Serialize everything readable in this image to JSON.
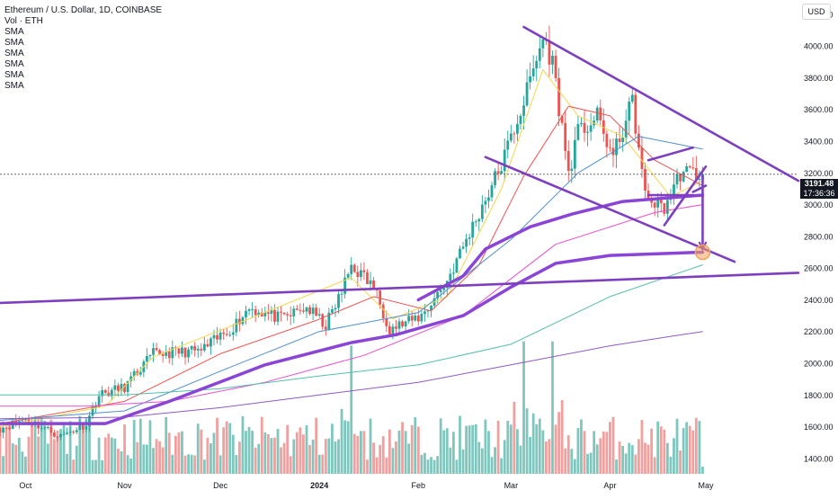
{
  "legend": {
    "title": "Ethereum / U.S. Dollar, 1D, COINBASE",
    "volume": "Vol · ETH",
    "indicators": [
      "SMA",
      "SMA",
      "SMA",
      "SMA",
      "SMA",
      "SMA"
    ]
  },
  "currency": "USD",
  "price_badge": {
    "price": "3191.48",
    "countdown": "17:36:36"
  },
  "colors": {
    "up": "#26a69a",
    "down": "#ef5350",
    "vol_up": "#7fc7be",
    "vol_down": "#f0a09e",
    "trendline": "#7e3fbf",
    "sma_yellow": "#f2d64b",
    "sma_red": "#ef5350",
    "sma_blue": "#4e8fcf",
    "sma_pink": "#e94fd0",
    "sma_teal": "#52bfa8",
    "sma_purple_thick": "#8a45d6",
    "sma_purple": "#8f58c8",
    "marker": "#f5a25d"
  },
  "chart_data": {
    "type": "candlestick",
    "title": "Ethereum / U.S. Dollar, 1D, COINBASE",
    "y_ticks": [
      1400,
      1600,
      1800,
      2000,
      2200,
      2400,
      2600,
      2800,
      3000,
      3200,
      3400,
      3600,
      3800,
      4000,
      4200
    ],
    "y_tick_labels": [
      "1400.00",
      "1600.00",
      "1800.00",
      "2000.00",
      "2200.00",
      "2400.00",
      "2600.00",
      "2800.00",
      "3000.00",
      "3200.00",
      "3400.00",
      "3600.00",
      "3800.00",
      "4000.00",
      "4200.00"
    ],
    "ylim": [
      1320,
      4290
    ],
    "x_tick_labels": [
      "Oct",
      "Nov",
      "Dec",
      "2024",
      "Feb",
      "Mar",
      "Apr",
      "May"
    ],
    "x_tick_dates": [
      "2023-10-01",
      "2023-11-01",
      "2023-12-01",
      "2024-01-01",
      "2024-02-01",
      "2024-03-01",
      "2024-04-01",
      "2024-05-01"
    ],
    "x_range": [
      "2023-09-23",
      "2024-05-30"
    ],
    "last_price": 3191.48,
    "price_path": [
      [
        "2023-09-23",
        1590
      ],
      [
        "2023-10-01",
        1650
      ],
      [
        "2023-10-12",
        1540
      ],
      [
        "2023-10-20",
        1620
      ],
      [
        "2023-10-24",
        1800
      ],
      [
        "2023-11-01",
        1850
      ],
      [
        "2023-11-10",
        2060
      ],
      [
        "2023-11-25",
        2080
      ],
      [
        "2023-12-05",
        2230
      ],
      [
        "2023-12-10",
        2350
      ],
      [
        "2023-12-20",
        2280
      ],
      [
        "2023-12-28",
        2350
      ],
      [
        "2024-01-03",
        2240
      ],
      [
        "2024-01-08",
        2450
      ],
      [
        "2024-01-11",
        2620
      ],
      [
        "2024-01-18",
        2480
      ],
      [
        "2024-01-23",
        2220
      ],
      [
        "2024-01-29",
        2260
      ],
      [
        "2024-02-02",
        2300
      ],
      [
        "2024-02-10",
        2520
      ],
      [
        "2024-02-20",
        2950
      ],
      [
        "2024-02-27",
        3250
      ],
      [
        "2024-03-05",
        3650
      ],
      [
        "2024-03-11",
        4050
      ],
      [
        "2024-03-14",
        3900
      ],
      [
        "2024-03-19",
        3200
      ],
      [
        "2024-03-22",
        3450
      ],
      [
        "2024-03-28",
        3550
      ],
      [
        "2024-04-02",
        3300
      ],
      [
        "2024-04-08",
        3650
      ],
      [
        "2024-04-12",
        3050
      ],
      [
        "2024-04-18",
        2980
      ],
      [
        "2024-04-23",
        3200
      ],
      [
        "2024-04-27",
        3200
      ],
      [
        "2024-04-30",
        3191.48
      ]
    ],
    "moving_averages": [
      {
        "label": "SMA",
        "color_key": "sma_yellow",
        "width": 1,
        "points": [
          [
            "2023-09-23",
            1600
          ],
          [
            "2023-10-26",
            1730
          ],
          [
            "2023-11-10",
            2040
          ],
          [
            "2023-12-10",
            2280
          ],
          [
            "2024-01-11",
            2540
          ],
          [
            "2024-01-24",
            2280
          ],
          [
            "2024-02-10",
            2420
          ],
          [
            "2024-02-27",
            3100
          ],
          [
            "2024-03-11",
            3850
          ],
          [
            "2024-03-22",
            3560
          ],
          [
            "2024-04-05",
            3430
          ],
          [
            "2024-04-20",
            3050
          ],
          [
            "2024-04-30",
            3150
          ]
        ]
      },
      {
        "label": "SMA",
        "color_key": "sma_red",
        "width": 1,
        "points": [
          [
            "2023-09-23",
            1620
          ],
          [
            "2023-11-01",
            1760
          ],
          [
            "2023-12-01",
            2060
          ],
          [
            "2023-12-31",
            2270
          ],
          [
            "2024-01-18",
            2420
          ],
          [
            "2024-02-05",
            2330
          ],
          [
            "2024-02-20",
            2620
          ],
          [
            "2024-03-05",
            3180
          ],
          [
            "2024-03-19",
            3620
          ],
          [
            "2024-04-01",
            3560
          ],
          [
            "2024-04-15",
            3280
          ],
          [
            "2024-04-30",
            3120
          ]
        ]
      },
      {
        "label": "SMA",
        "color_key": "sma_blue",
        "width": 1,
        "points": [
          [
            "2023-09-23",
            1640
          ],
          [
            "2023-11-01",
            1700
          ],
          [
            "2023-12-01",
            1950
          ],
          [
            "2024-01-01",
            2200
          ],
          [
            "2024-02-01",
            2320
          ],
          [
            "2024-03-01",
            2780
          ],
          [
            "2024-03-22",
            3200
          ],
          [
            "2024-04-10",
            3430
          ],
          [
            "2024-04-30",
            3350
          ]
        ]
      },
      {
        "label": "SMA",
        "color_key": "sma_pink",
        "width": 1,
        "points": [
          [
            "2023-09-23",
            1730
          ],
          [
            "2023-10-20",
            1730
          ],
          [
            "2023-11-15",
            1760
          ],
          [
            "2023-12-15",
            1880
          ],
          [
            "2024-01-15",
            2050
          ],
          [
            "2024-02-15",
            2300
          ],
          [
            "2024-03-15",
            2750
          ],
          [
            "2024-04-15",
            2950
          ],
          [
            "2024-04-30",
            3000
          ]
        ]
      },
      {
        "label": "SMA",
        "color_key": "sma_teal",
        "width": 1,
        "points": [
          [
            "2023-09-23",
            1800
          ],
          [
            "2023-11-01",
            1800
          ],
          [
            "2023-12-01",
            1840
          ],
          [
            "2024-01-01",
            1920
          ],
          [
            "2024-02-01",
            1990
          ],
          [
            "2024-03-01",
            2120
          ],
          [
            "2024-04-01",
            2420
          ],
          [
            "2024-04-30",
            2620
          ]
        ]
      },
      {
        "label": "SMA",
        "color_key": "sma_purple_thick",
        "width": 3.5,
        "points": [
          [
            "2023-09-23",
            1620
          ],
          [
            "2023-10-26",
            1620
          ],
          [
            "2023-11-15",
            1760
          ],
          [
            "2023-12-15",
            1990
          ],
          [
            "2024-01-11",
            2130
          ],
          [
            "2024-01-25",
            2180
          ],
          [
            "2024-02-15",
            2300
          ],
          [
            "2024-03-01",
            2480
          ],
          [
            "2024-03-15",
            2630
          ],
          [
            "2024-04-01",
            2680
          ],
          [
            "2024-04-30",
            2700
          ]
        ]
      },
      {
        "label": "SMA",
        "color_key": "sma_purple_thick",
        "width": 3.5,
        "points": [
          [
            "2024-02-01",
            2400
          ],
          [
            "2024-02-15",
            2550
          ],
          [
            "2024-02-22",
            2720
          ],
          [
            "2024-03-07",
            2860
          ],
          [
            "2024-03-20",
            2940
          ],
          [
            "2024-04-05",
            3020
          ],
          [
            "2024-04-30",
            3060
          ]
        ]
      },
      {
        "label": "SMA",
        "color_key": "sma_purple",
        "width": 1,
        "points": [
          [
            "2023-09-23",
            1650
          ],
          [
            "2023-11-01",
            1660
          ],
          [
            "2023-12-01",
            1720
          ],
          [
            "2024-01-01",
            1800
          ],
          [
            "2024-02-01",
            1880
          ],
          [
            "2024-03-01",
            1990
          ],
          [
            "2024-04-01",
            2110
          ],
          [
            "2024-04-30",
            2200
          ]
        ]
      }
    ],
    "volume": {
      "levels": [
        1,
        2,
        3,
        4,
        5
      ],
      "peak_dates": [
        "2024-01-11",
        "2024-03-05",
        "2024-03-14"
      ]
    },
    "drawings": [
      {
        "kind": "trendline",
        "from": [
          "2023-09-23",
          2380
        ],
        "to": [
          "2024-05-30",
          2570
        ]
      },
      {
        "kind": "trendline",
        "from": [
          "2024-03-05",
          4120
        ],
        "to": [
          "2024-05-30",
          3150
        ]
      },
      {
        "kind": "trendline",
        "from": [
          "2024-02-22",
          3300
        ],
        "to": [
          "2024-05-10",
          2640
        ]
      },
      {
        "kind": "trendline",
        "from": [
          "2024-04-13",
          3280
        ],
        "to": [
          "2024-04-27",
          3360
        ]
      },
      {
        "kind": "trendline",
        "from": [
          "2024-04-13",
          3060
        ],
        "to": [
          "2024-04-27",
          3060
        ]
      },
      {
        "kind": "trendline",
        "from": [
          "2024-04-18",
          2870
        ],
        "to": [
          "2024-05-01",
          3240
        ]
      },
      {
        "kind": "trendline",
        "from": [
          "2024-04-27",
          3080
        ],
        "to": [
          "2024-05-01",
          3120
        ]
      },
      {
        "kind": "arrow",
        "from": [
          "2024-04-30",
          3180
        ],
        "to": [
          "2024-04-30",
          2720
        ]
      }
    ],
    "marker": {
      "date": "2024-04-30",
      "price": 2700
    }
  }
}
